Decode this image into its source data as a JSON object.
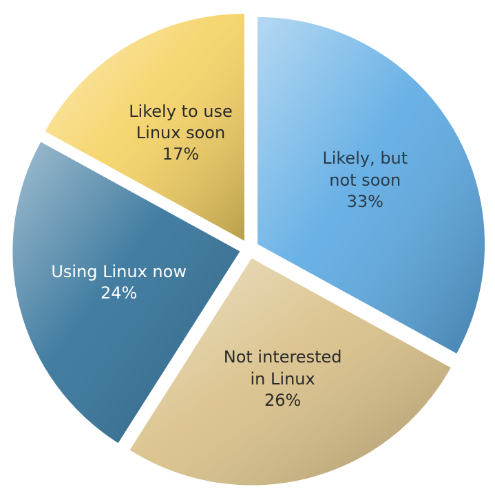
{
  "chart_data": {
    "type": "pie",
    "categories": [
      "Likely, but not soon",
      "Not interested in Linux",
      "Using Linux now",
      "Likely to use Linux soon"
    ],
    "values": [
      33,
      26,
      24,
      17
    ],
    "value_labels": [
      "33%",
      "26%",
      "24%",
      "17%"
    ],
    "colors": [
      "#5aa9e3",
      "#d8bf86",
      "#2e6f97",
      "#f6d262"
    ],
    "label_colors": [
      "#2a3a4a",
      "#2a2a2a",
      "#ffffff",
      "#2a2a2a"
    ]
  }
}
